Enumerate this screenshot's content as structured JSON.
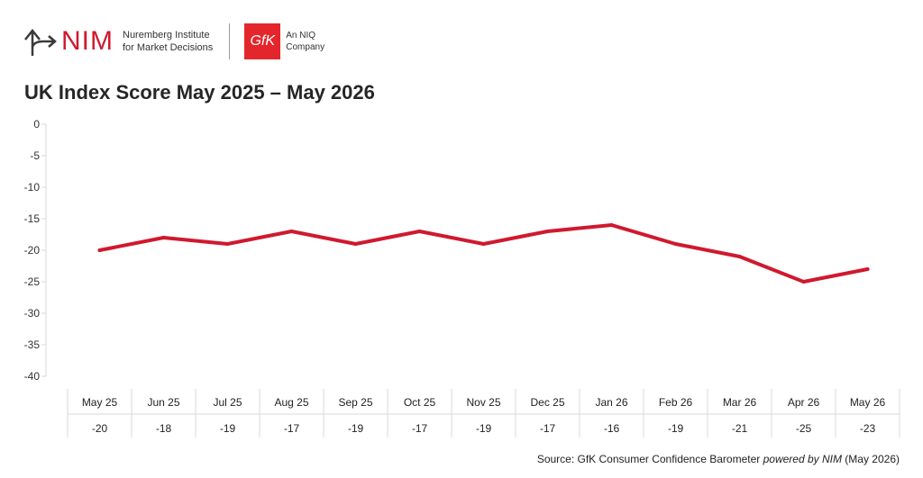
{
  "branding": {
    "nim_word": "NIM",
    "nim_line1": "Nuremberg Institute",
    "nim_line2": "for Market Decisions",
    "gfk_word": "GfK",
    "gfk_line1": "An NIQ",
    "gfk_line2": "Company",
    "nim_color": "#d0192e",
    "gfk_color": "#e3262c"
  },
  "source": {
    "prefix": "Source: GfK Consumer Confidence Barometer ",
    "emphasis": "powered by NIM",
    "suffix": " (May 2026)"
  },
  "chart_data": {
    "type": "line",
    "title": "UK Index Score May 2025 – May 2026",
    "xlabel": "",
    "ylabel": "",
    "categories": [
      "May 25",
      "Jun 25",
      "Jul 25",
      "Aug 25",
      "Sep 25",
      "Oct 25",
      "Nov 25",
      "Dec 25",
      "Jan 26",
      "Feb 26",
      "Mar 26",
      "Apr 26",
      "May 26"
    ],
    "series": [
      {
        "values": [
          -20,
          -18,
          -19,
          -17,
          -19,
          -17,
          -19,
          -17,
          -16,
          -19,
          -21,
          -25,
          -23
        ],
        "color": "#d0192e"
      }
    ],
    "data_table": [
      "-20",
      "-18",
      "-19",
      "-17",
      "-19",
      "-17",
      "-19",
      "-17",
      "-16",
      "-19",
      "-21",
      "-25",
      "-23"
    ],
    "ylim": [
      -40,
      0
    ],
    "yticks": [
      0,
      -5,
      -10,
      -15,
      -20,
      -25,
      -30,
      -35,
      -40
    ],
    "grid": false,
    "legend": "none"
  }
}
